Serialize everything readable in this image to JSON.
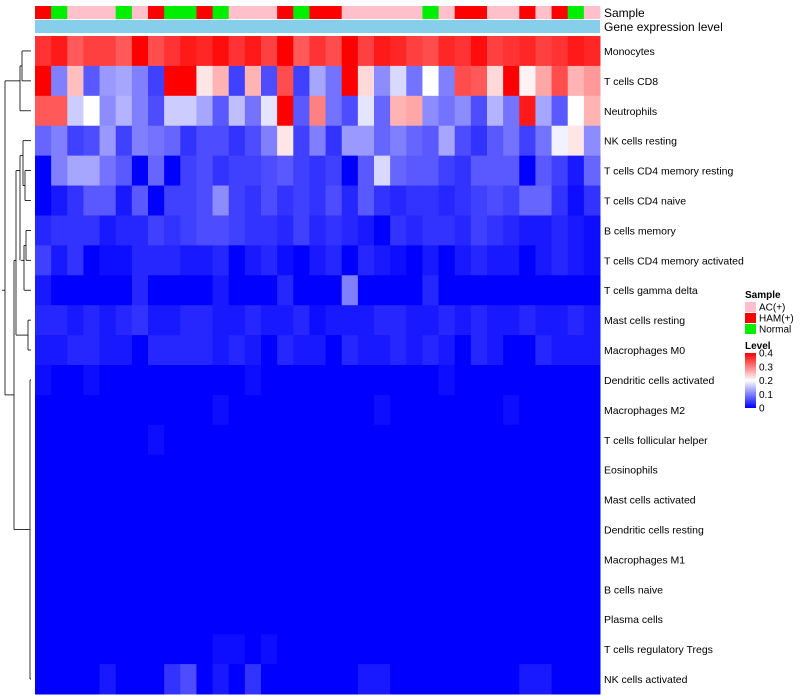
{
  "chart_data": {
    "type": "heatmap",
    "title": "",
    "rows": [
      "Monocytes",
      "T cells CD8",
      "Neutrophils",
      "NK cells resting",
      "T cells CD4 memory resting",
      "T cells CD4 naive",
      "B cells memory",
      "T cells CD4 memory activated",
      "T cells gamma delta",
      "Mast cells resting",
      "Macrophages M0",
      "Dendritic cells activated",
      "Macrophages M2",
      "T cells follicular helper",
      "Eosinophils",
      "Mast cells activated",
      "Dendritic cells resting",
      "Macrophages M1",
      "B cells naive",
      "Plasma cells",
      "T cells regulatory  Tregs",
      "NK cells activated"
    ],
    "n_columns": 35,
    "column_samples": [
      "HAM(+)",
      "Normal",
      "AC(+)",
      "AC(+)",
      "AC(+)",
      "Normal",
      "AC(+)",
      "HAM(+)",
      "Normal",
      "Normal",
      "HAM(+)",
      "Normal",
      "AC(+)",
      "AC(+)",
      "AC(+)",
      "HAM(+)",
      "Normal",
      "HAM(+)",
      "HAM(+)",
      "AC(+)",
      "AC(+)",
      "AC(+)",
      "AC(+)",
      "AC(+)",
      "Normal",
      "AC(+)",
      "HAM(+)",
      "HAM(+)",
      "AC(+)",
      "AC(+)",
      "HAM(+)",
      "AC(+)",
      "HAM(+)",
      "Normal",
      "AC(+)"
    ],
    "values": [
      [
        0.36,
        0.38,
        0.33,
        0.35,
        0.35,
        0.33,
        0.4,
        0.34,
        0.36,
        0.38,
        0.37,
        0.39,
        0.36,
        0.38,
        0.35,
        0.4,
        0.33,
        0.36,
        0.34,
        0.4,
        0.35,
        0.38,
        0.37,
        0.35,
        0.34,
        0.37,
        0.36,
        0.39,
        0.35,
        0.36,
        0.37,
        0.35,
        0.36,
        0.38,
        0.37
      ],
      [
        0.4,
        0.1,
        0.25,
        0.07,
        0.12,
        0.13,
        0.1,
        0.05,
        0.41,
        0.42,
        0.22,
        0.26,
        0.05,
        0.26,
        0.06,
        0.34,
        0.05,
        0.13,
        0.09,
        0.41,
        0.23,
        0.11,
        0.17,
        0.09,
        0.2,
        0.1,
        0.34,
        0.33,
        0.23,
        0.41,
        0.21,
        0.27,
        0.34,
        0.26,
        0.28
      ],
      [
        0.33,
        0.33,
        0.16,
        0.2,
        0.11,
        0.14,
        0.1,
        0.06,
        0.16,
        0.16,
        0.13,
        0.07,
        0.15,
        0.09,
        0.18,
        0.41,
        0.07,
        0.3,
        0.09,
        0.06,
        0.18,
        0.08,
        0.26,
        0.27,
        0.11,
        0.09,
        0.11,
        0.06,
        0.14,
        0.09,
        0.38,
        0.13,
        0.07,
        0.2,
        0.26
      ],
      [
        0.08,
        0.1,
        0.05,
        0.06,
        0.12,
        0.05,
        0.1,
        0.09,
        0.08,
        0.04,
        0.06,
        0.06,
        0.04,
        0.06,
        0.1,
        0.22,
        0.05,
        0.1,
        0.04,
        0.12,
        0.12,
        0.08,
        0.1,
        0.08,
        0.07,
        0.13,
        0.06,
        0.04,
        0.07,
        0.09,
        0.05,
        0.09,
        0.19,
        0.22,
        0.11
      ],
      [
        0.0,
        0.1,
        0.13,
        0.13,
        0.09,
        0.07,
        0.0,
        0.08,
        0.0,
        0.05,
        0.06,
        0.04,
        0.05,
        0.05,
        0.06,
        0.07,
        0.05,
        0.04,
        0.05,
        0.0,
        0.07,
        0.17,
        0.08,
        0.07,
        0.07,
        0.05,
        0.04,
        0.07,
        0.07,
        0.07,
        0.0,
        0.07,
        0.05,
        0.02,
        0.08
      ],
      [
        0.0,
        0.02,
        0.04,
        0.07,
        0.07,
        0.02,
        0.07,
        0.0,
        0.05,
        0.05,
        0.06,
        0.11,
        0.05,
        0.04,
        0.06,
        0.04,
        0.05,
        0.04,
        0.06,
        0.03,
        0.07,
        0.04,
        0.03,
        0.04,
        0.04,
        0.03,
        0.04,
        0.05,
        0.06,
        0.05,
        0.08,
        0.08,
        0.04,
        0.01,
        0.04
      ],
      [
        0.03,
        0.04,
        0.04,
        0.04,
        0.02,
        0.03,
        0.03,
        0.05,
        0.04,
        0.05,
        0.06,
        0.06,
        0.05,
        0.04,
        0.04,
        0.03,
        0.05,
        0.03,
        0.04,
        0.03,
        0.02,
        0.0,
        0.04,
        0.03,
        0.04,
        0.04,
        0.03,
        0.05,
        0.04,
        0.03,
        0.02,
        0.02,
        0.03,
        0.02,
        0.01
      ],
      [
        0.05,
        0.02,
        0.04,
        0.0,
        0.01,
        0.01,
        0.03,
        0.03,
        0.03,
        0.02,
        0.02,
        0.03,
        0.0,
        0.02,
        0.03,
        0.01,
        0.0,
        0.02,
        0.03,
        0.0,
        0.03,
        0.02,
        0.01,
        0.0,
        0.02,
        0.0,
        0.02,
        0.03,
        0.02,
        0.02,
        0.0,
        0.02,
        0.03,
        0.02,
        0.01
      ],
      [
        0.02,
        0.0,
        0.0,
        0.0,
        0.0,
        0.0,
        0.03,
        0.0,
        0.0,
        0.0,
        0.0,
        0.02,
        0.0,
        0.0,
        0.0,
        0.03,
        0.0,
        0.0,
        0.0,
        0.1,
        0.0,
        0.0,
        0.0,
        0.0,
        0.03,
        0.0,
        0.0,
        0.0,
        0.0,
        0.0,
        0.0,
        0.0,
        0.0,
        0.0,
        0.0
      ],
      [
        0.03,
        0.03,
        0.02,
        0.03,
        0.02,
        0.03,
        0.04,
        0.02,
        0.02,
        0.03,
        0.03,
        0.02,
        0.02,
        0.03,
        0.02,
        0.02,
        0.03,
        0.01,
        0.02,
        0.02,
        0.02,
        0.03,
        0.03,
        0.02,
        0.02,
        0.03,
        0.02,
        0.03,
        0.02,
        0.02,
        0.03,
        0.02,
        0.02,
        0.03,
        0.02
      ],
      [
        0.02,
        0.02,
        0.03,
        0.03,
        0.02,
        0.02,
        0.0,
        0.03,
        0.03,
        0.03,
        0.03,
        0.02,
        0.03,
        0.02,
        0.0,
        0.03,
        0.02,
        0.02,
        0.0,
        0.03,
        0.02,
        0.02,
        0.03,
        0.02,
        0.03,
        0.02,
        0.0,
        0.03,
        0.02,
        0.0,
        0.0,
        0.03,
        0.02,
        0.02,
        0.02
      ],
      [
        0.01,
        0.0,
        0.0,
        0.01,
        0.0,
        0.0,
        0.0,
        0.0,
        0.0,
        0.0,
        0.0,
        0.0,
        0.0,
        0.01,
        0.0,
        0.0,
        0.0,
        0.0,
        0.0,
        0.0,
        0.0,
        0.0,
        0.0,
        0.0,
        0.0,
        0.01,
        0.0,
        0.0,
        0.0,
        0.0,
        0.0,
        0.0,
        0.0,
        0.0,
        0.0
      ],
      [
        0.0,
        0.0,
        0.0,
        0.0,
        0.0,
        0.0,
        0.0,
        0.0,
        0.0,
        0.0,
        0.0,
        0.01,
        0.0,
        0.0,
        0.0,
        0.0,
        0.0,
        0.0,
        0.0,
        0.0,
        0.0,
        0.01,
        0.0,
        0.0,
        0.0,
        0.0,
        0.0,
        0.0,
        0.0,
        0.01,
        0.0,
        0.0,
        0.0,
        0.0,
        0.0
      ],
      [
        0.0,
        0.0,
        0.0,
        0.0,
        0.0,
        0.0,
        0.0,
        0.01,
        0.0,
        0.0,
        0.0,
        0.0,
        0.0,
        0.0,
        0.0,
        0.0,
        0.0,
        0.0,
        0.0,
        0.0,
        0.0,
        0.0,
        0.0,
        0.0,
        0.0,
        0.0,
        0.0,
        0.0,
        0.0,
        0.0,
        0.0,
        0.0,
        0.0,
        0.0,
        0.0
      ],
      [
        0.0,
        0.0,
        0.0,
        0.0,
        0.0,
        0.0,
        0.0,
        0.0,
        0.0,
        0.0,
        0.0,
        0.0,
        0.0,
        0.0,
        0.0,
        0.0,
        0.0,
        0.0,
        0.0,
        0.0,
        0.0,
        0.0,
        0.0,
        0.0,
        0.0,
        0.0,
        0.0,
        0.0,
        0.0,
        0.0,
        0.0,
        0.0,
        0.0,
        0.0,
        0.0
      ],
      [
        0.0,
        0.0,
        0.0,
        0.0,
        0.0,
        0.0,
        0.0,
        0.0,
        0.0,
        0.0,
        0.0,
        0.0,
        0.0,
        0.0,
        0.0,
        0.0,
        0.0,
        0.0,
        0.0,
        0.0,
        0.0,
        0.0,
        0.0,
        0.0,
        0.0,
        0.0,
        0.0,
        0.0,
        0.0,
        0.0,
        0.0,
        0.0,
        0.0,
        0.0,
        0.0
      ],
      [
        0.0,
        0.0,
        0.0,
        0.0,
        0.0,
        0.0,
        0.0,
        0.0,
        0.0,
        0.0,
        0.0,
        0.0,
        0.0,
        0.0,
        0.0,
        0.0,
        0.0,
        0.0,
        0.0,
        0.0,
        0.0,
        0.0,
        0.0,
        0.0,
        0.0,
        0.0,
        0.0,
        0.0,
        0.0,
        0.0,
        0.0,
        0.0,
        0.0,
        0.0,
        0.0
      ],
      [
        0.0,
        0.0,
        0.0,
        0.0,
        0.0,
        0.0,
        0.0,
        0.0,
        0.0,
        0.0,
        0.0,
        0.0,
        0.0,
        0.0,
        0.0,
        0.0,
        0.0,
        0.0,
        0.0,
        0.0,
        0.0,
        0.0,
        0.0,
        0.0,
        0.0,
        0.0,
        0.0,
        0.0,
        0.0,
        0.0,
        0.0,
        0.0,
        0.0,
        0.0,
        0.0
      ],
      [
        0.0,
        0.0,
        0.0,
        0.0,
        0.0,
        0.0,
        0.0,
        0.0,
        0.0,
        0.0,
        0.0,
        0.0,
        0.0,
        0.0,
        0.0,
        0.0,
        0.0,
        0.0,
        0.0,
        0.0,
        0.0,
        0.0,
        0.0,
        0.0,
        0.0,
        0.0,
        0.0,
        0.0,
        0.0,
        0.0,
        0.0,
        0.0,
        0.0,
        0.0,
        0.0
      ],
      [
        0.0,
        0.0,
        0.0,
        0.0,
        0.0,
        0.0,
        0.0,
        0.0,
        0.0,
        0.0,
        0.0,
        0.0,
        0.0,
        0.0,
        0.0,
        0.0,
        0.0,
        0.0,
        0.0,
        0.0,
        0.0,
        0.0,
        0.0,
        0.0,
        0.0,
        0.0,
        0.0,
        0.0,
        0.0,
        0.0,
        0.0,
        0.0,
        0.0,
        0.0,
        0.0
      ],
      [
        0.0,
        0.0,
        0.0,
        0.0,
        0.0,
        0.0,
        0.0,
        0.0,
        0.0,
        0.0,
        0.0,
        0.01,
        0.01,
        0.0,
        0.01,
        0.0,
        0.0,
        0.0,
        0.0,
        0.0,
        0.0,
        0.0,
        0.0,
        0.0,
        0.0,
        0.0,
        0.0,
        0.0,
        0.0,
        0.0,
        0.0,
        0.0,
        0.0,
        0.0,
        0.0
      ],
      [
        0.0,
        0.0,
        0.0,
        0.0,
        0.02,
        0.0,
        0.0,
        0.0,
        0.04,
        0.06,
        0.0,
        0.02,
        0.0,
        0.04,
        0.0,
        0.0,
        0.0,
        0.0,
        0.0,
        0.0,
        0.02,
        0.02,
        0.0,
        0.0,
        0.0,
        0.0,
        0.0,
        0.0,
        0.0,
        0.0,
        0.02,
        0.02,
        0.0,
        0.0,
        0.0
      ]
    ],
    "annotation_labels": {
      "sample": "Sample",
      "expression": "Gene expression level"
    },
    "legend_sample": {
      "title": "Sample",
      "items": [
        {
          "label": "AC(+)",
          "color": "#ffc0cb"
        },
        {
          "label": "HAM(+)",
          "color": "#ff0000"
        },
        {
          "label": "Normal",
          "color": "#00ee00"
        }
      ]
    },
    "legend_level": {
      "title": "Level",
      "min": 0,
      "max": 0.4,
      "ticks": [
        {
          "value": 0.4,
          "label": "0.4"
        },
        {
          "value": 0.3,
          "label": "0.3"
        },
        {
          "value": 0.2,
          "label": "0.2"
        },
        {
          "value": 0.1,
          "label": "0.1"
        },
        {
          "value": 0,
          "label": "0"
        }
      ]
    },
    "color_scale": {
      "low": "#0000ff",
      "mid": "#ffffff",
      "high": "#ff0000",
      "mid_value": 0.2
    },
    "expression_bar_color": "#87ceeb"
  }
}
